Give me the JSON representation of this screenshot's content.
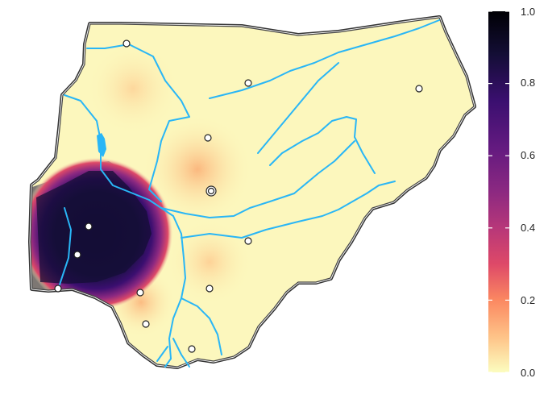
{
  "map": {
    "country": "Nigeria",
    "fill_scale": "magma (reversed)",
    "river_color": "#29b6f6",
    "border_color": "#333333",
    "hotspot": "south-west",
    "city_marker": "white-circle",
    "capital_marker": "double-circle"
  },
  "colorbar": {
    "colors": [
      "#fcfdbf",
      "#fec287",
      "#fb8861",
      "#de4968",
      "#b73779",
      "#8c2981",
      "#641a80",
      "#3b0f70",
      "#140e36",
      "#000004"
    ],
    "ticks": [
      "1.0",
      "0.8",
      "0.6",
      "0.4",
      "0.2",
      "0.0"
    ],
    "range": [
      0.0,
      1.0
    ],
    "placement": "right"
  }
}
